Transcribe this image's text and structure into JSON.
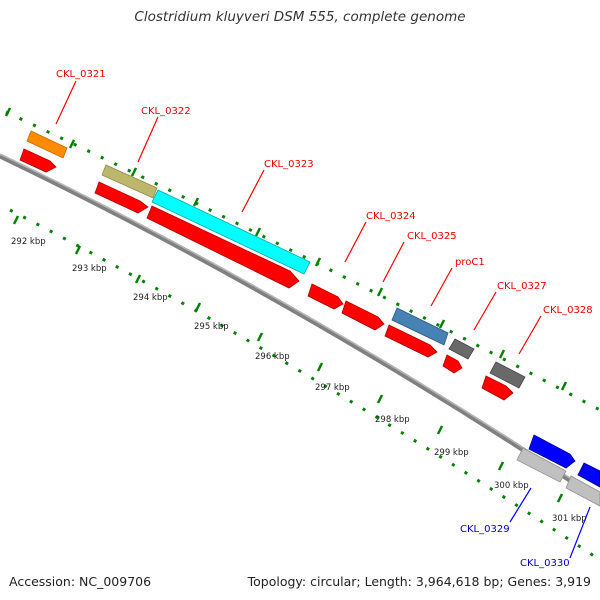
{
  "title": "Clostridium kluyveri DSM 555, complete genome",
  "accession": "Accession: NC_009706",
  "summary": "Topology: circular; Length: 3,964,618 bp; Genes: 3,919",
  "colors": {
    "cds": "#ff0000",
    "orange": "#ff8c00",
    "khaki": "#bdb76b",
    "cyan": "#00ffff",
    "steelblue": "#4682b4",
    "dimgray": "#696969",
    "blue": "#0000ff",
    "silver": "#c0c0c0",
    "backbone": "#808080",
    "ticks": "#008000"
  },
  "ticks": [
    "292 kbp",
    "293 kbp",
    "294 kbp",
    "295 kbp",
    "296 kbp",
    "297 kbp",
    "298 kbp",
    "299 kbp",
    "300 kbp",
    "301 kbp"
  ],
  "labels_red": [
    "CKL_0321",
    "CKL_0322",
    "CKL_0323",
    "CKL_0324",
    "CKL_0325",
    "proC1",
    "CKL_0327",
    "CKL_0328"
  ],
  "labels_blue": [
    "CKL_0329",
    "CKL_0330"
  ]
}
